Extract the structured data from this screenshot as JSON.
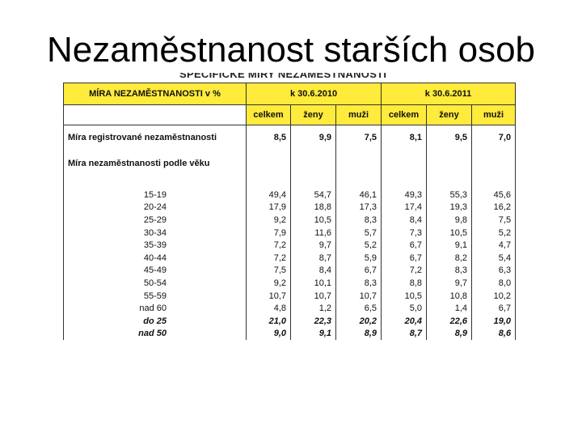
{
  "slide": {
    "title": "Nezaměstnanost starších osob"
  },
  "cut_heading": "SPECIFICKÉ MÍRY NEZAMĚSTNANOSTI",
  "table": {
    "header_label": "MÍRA NEZAMĚSTNANOSTI v %",
    "periods": [
      "k 30.6.2010",
      "k 30.6.2011"
    ],
    "subheaders": [
      "celkem",
      "ženy",
      "muži",
      "celkem",
      "ženy",
      "muži"
    ],
    "registered": {
      "label": "Míra registrované nezaměstnanosti",
      "values": [
        "8,5",
        "9,9",
        "7,5",
        "8,1",
        "9,5",
        "7,0"
      ]
    },
    "by_age_label": "Míra nezaměstnanosti podle věku",
    "rows": [
      {
        "label": "15-19",
        "values": [
          "49,4",
          "54,7",
          "46,1",
          "49,3",
          "55,3",
          "45,6"
        ]
      },
      {
        "label": "20-24",
        "values": [
          "17,9",
          "18,8",
          "17,3",
          "17,4",
          "19,3",
          "16,2"
        ]
      },
      {
        "label": "25-29",
        "values": [
          "9,2",
          "10,5",
          "8,3",
          "8,4",
          "9,8",
          "7,5"
        ]
      },
      {
        "label": "30-34",
        "values": [
          "7,9",
          "11,6",
          "5,7",
          "7,3",
          "10,5",
          "5,2"
        ]
      },
      {
        "label": "35-39",
        "values": [
          "7,2",
          "9,7",
          "5,2",
          "6,7",
          "9,1",
          "4,7"
        ]
      },
      {
        "label": "40-44",
        "values": [
          "7,2",
          "8,7",
          "5,9",
          "6,7",
          "8,2",
          "5,4"
        ]
      },
      {
        "label": "45-49",
        "values": [
          "7,5",
          "8,4",
          "6,7",
          "7,2",
          "8,3",
          "6,3"
        ]
      },
      {
        "label": "50-54",
        "values": [
          "9,2",
          "10,1",
          "8,3",
          "8,8",
          "9,7",
          "8,0"
        ]
      },
      {
        "label": "55-59",
        "values": [
          "10,7",
          "10,7",
          "10,7",
          "10,5",
          "10,8",
          "10,2"
        ]
      },
      {
        "label": "nad 60",
        "values": [
          "4,8",
          "1,2",
          "6,5",
          "5,0",
          "1,4",
          "6,7"
        ]
      }
    ],
    "summary_rows": [
      {
        "label": "do 25",
        "values": [
          "21,0",
          "22,3",
          "20,2",
          "20,4",
          "22,6",
          "19,0"
        ]
      },
      {
        "label": "nad 50",
        "values": [
          "9,0",
          "9,1",
          "8,9",
          "8,7",
          "8,9",
          "8,6"
        ]
      }
    ]
  }
}
